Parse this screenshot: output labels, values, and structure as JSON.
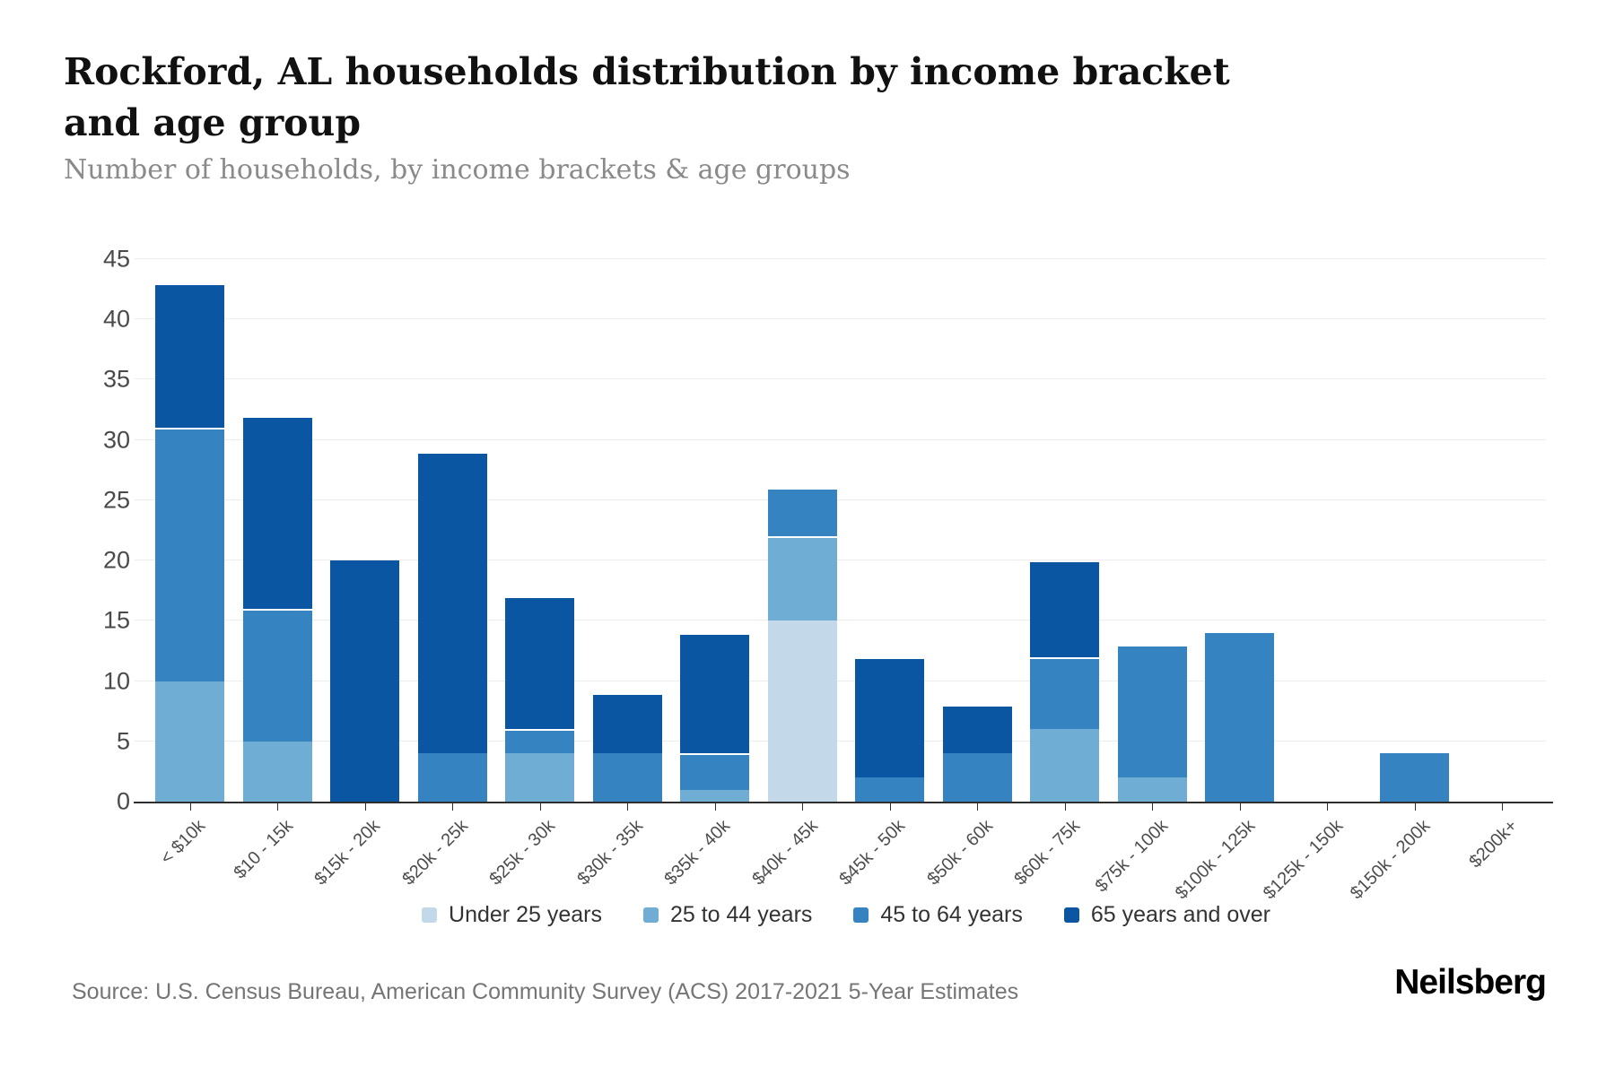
{
  "header": {
    "title": "Rockford, AL households distribution by income bracket and age group",
    "subtitle": "Number of households, by income brackets & age groups"
  },
  "chart_data": {
    "type": "bar",
    "stacked": true,
    "title": "Rockford, AL households distribution by income bracket and age group",
    "xlabel": "",
    "ylabel": "Number of households",
    "ylim": [
      0,
      45
    ],
    "yticks": [
      0,
      5,
      10,
      15,
      20,
      25,
      30,
      35,
      40,
      45
    ],
    "grid": true,
    "legend_position": "bottom",
    "categories": [
      "< $10k",
      "$10 - 15k",
      "$15k - 20k",
      "$20k - 25k",
      "$25k - 30k",
      "$30k - 35k",
      "$35k - 40k",
      "$40k - 45k",
      "$45k - 50k",
      "$50k - 60k",
      "$60k - 75k",
      "$75k - 100k",
      "$100k - 125k",
      "$125k - 150k",
      "$150k - 200k",
      "$200k+"
    ],
    "series": [
      {
        "name": "Under 25 years",
        "color": "#c3d8e9",
        "values": [
          0,
          0,
          0,
          0,
          0,
          0,
          0,
          15,
          0,
          0,
          0,
          0,
          0,
          0,
          0,
          0
        ]
      },
      {
        "name": "25 to 44 years",
        "color": "#6fadd4",
        "values": [
          10,
          5,
          0,
          0,
          4,
          0,
          1,
          7,
          0,
          0,
          6,
          2,
          0,
          0,
          0,
          0
        ]
      },
      {
        "name": "45 to 64 years",
        "color": "#3583c0",
        "values": [
          21,
          11,
          0,
          4,
          2,
          4,
          3,
          4,
          2,
          4,
          6,
          11,
          14,
          0,
          4,
          0
        ]
      },
      {
        "name": "65 years and over",
        "color": "#0b56a3",
        "values": [
          12,
          16,
          20,
          25,
          11,
          5,
          10,
          0,
          10,
          4,
          8,
          0,
          0,
          0,
          0,
          0
        ]
      }
    ],
    "totals": [
      43,
      32,
      20,
      29,
      17,
      9,
      14,
      26,
      12,
      8,
      20,
      13,
      14,
      0,
      4,
      0
    ]
  },
  "footer": {
    "source": "Source: U.S. Census Bureau, American Community Survey (ACS) 2017-2021 5-Year Estimates",
    "logo": "Neilsberg"
  }
}
